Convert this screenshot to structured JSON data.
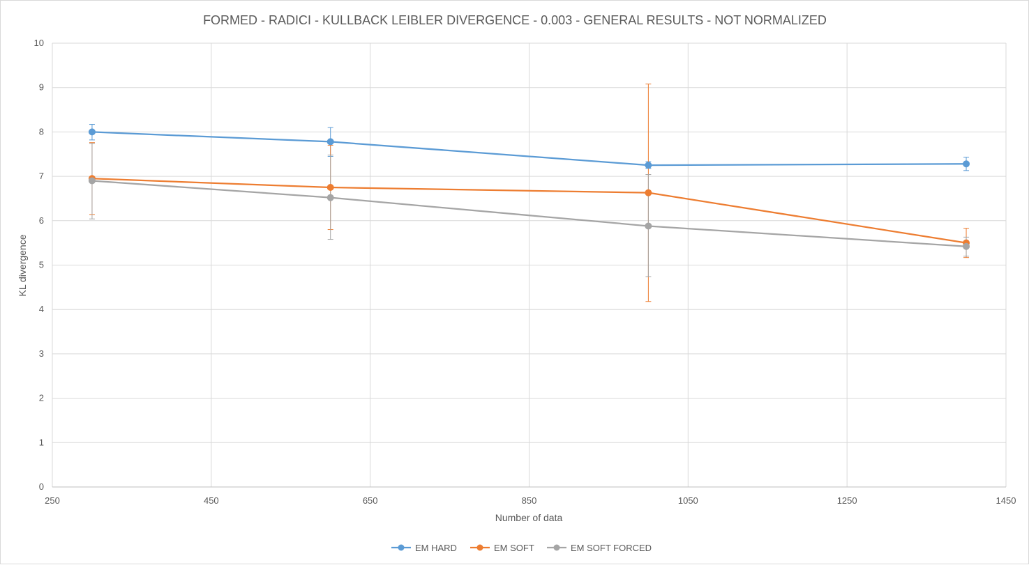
{
  "chart_data": {
    "type": "line",
    "title": "FORMED - RADICI - KULLBACK LEIBLER DIVERGENCE - 0.003 - GENERAL RESULTS - NOT NORMALIZED",
    "xlabel": "Number of data",
    "ylabel": "KL divergence",
    "xlim": [
      250,
      1450
    ],
    "ylim": [
      0,
      10
    ],
    "x_ticks": [
      "250",
      "450",
      "650",
      "850",
      "1050",
      "1250",
      "1450"
    ],
    "y_ticks": [
      "0",
      "1",
      "2",
      "3",
      "4",
      "5",
      "6",
      "7",
      "8",
      "9",
      "10"
    ],
    "grid": true,
    "legend_position": "bottom",
    "x": [
      300,
      600,
      1000,
      1400
    ],
    "series": [
      {
        "name": "EM HARD",
        "color": "#5b9bd5",
        "values": [
          8.0,
          7.78,
          7.25,
          7.28
        ],
        "error_low": [
          7.82,
          7.45,
          7.18,
          7.13
        ],
        "error_high": [
          8.17,
          8.1,
          7.33,
          7.43
        ]
      },
      {
        "name": "EM SOFT",
        "color": "#ed7d31",
        "values": [
          6.95,
          6.75,
          6.63,
          5.5
        ],
        "error_low": [
          6.14,
          5.8,
          4.18,
          5.17
        ],
        "error_high": [
          7.76,
          7.7,
          9.08,
          5.83
        ]
      },
      {
        "name": "EM SOFT FORCED",
        "color": "#a5a5a5",
        "values": [
          6.9,
          6.52,
          5.88,
          5.42
        ],
        "error_low": [
          6.04,
          5.58,
          4.74,
          5.2
        ],
        "error_high": [
          7.74,
          7.48,
          7.04,
          5.63
        ]
      }
    ]
  }
}
